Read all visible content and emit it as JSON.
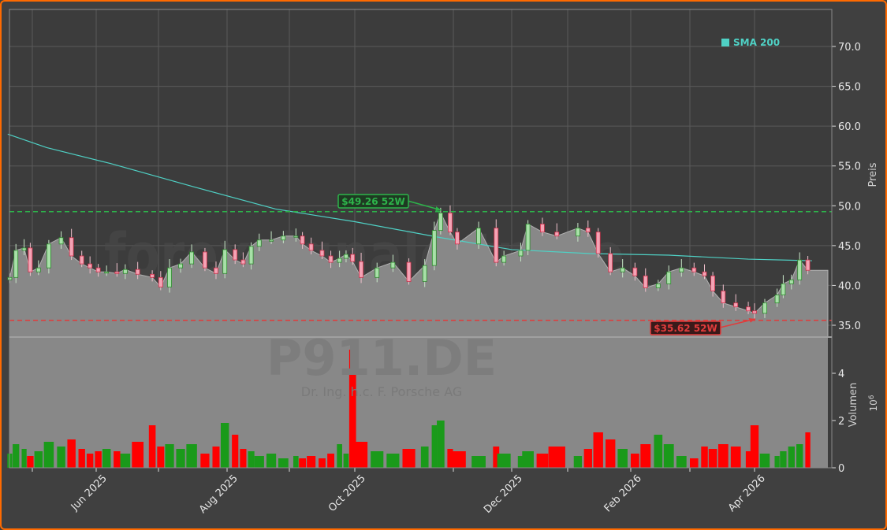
{
  "chart_data": [
    {
      "type": "candlestick",
      "ticker_watermark": "P911.DE",
      "company_watermark": "Dr. Ing. h.c. F. Porsche AG",
      "site_watermark": "forexsignale.trade",
      "ylabel": "Preis",
      "ylim": [
        34,
        74
      ],
      "yticks": [
        "35.0",
        "40.0",
        "45.0",
        "50.0",
        "55.0",
        "60.0",
        "65.0",
        "70.0"
      ],
      "xticks": [
        {
          "date": "2025-05-01",
          "label": ""
        },
        {
          "date": "2025-06-01",
          "label": "Jun 2025"
        },
        {
          "date": "2025-07-01",
          "label": ""
        },
        {
          "date": "2025-08-01",
          "label": "Aug 2025"
        },
        {
          "date": "2025-09-01",
          "label": ""
        },
        {
          "date": "2025-10-01",
          "label": "Oct 2025"
        },
        {
          "date": "2025-11-01",
          "label": ""
        },
        {
          "date": "2025-12-01",
          "label": "Dec 2025"
        },
        {
          "date": "2026-01-01",
          "label": ""
        },
        {
          "date": "2026-02-01",
          "label": "Feb 2026"
        },
        {
          "date": "2026-03-01",
          "label": ""
        },
        {
          "date": "2026-04-01",
          "label": "Apr 2026"
        }
      ],
      "grid": true,
      "legend": {
        "label": "SMA 200",
        "placement": "top-right",
        "color": "#4fd1c5"
      },
      "colors": {
        "up": "#1a9a1a",
        "down": "#ff0000",
        "up_body": "#a8e0a8",
        "down_body": "#f4a3b5",
        "area": "#888888",
        "sma": "#4fd1c5",
        "high_line": "#2db34a",
        "low_line": "#e03c3c"
      },
      "high_52w": {
        "value": 49.26,
        "label": "$49.26 52W",
        "date": "2025-10-28"
      },
      "low_52w": {
        "value": 35.62,
        "label": "$35.62 52W",
        "date": "2026-04-01"
      },
      "close": [
        [
          "2025-04-20",
          41.0
        ],
        [
          "2025-04-23",
          44.4
        ],
        [
          "2025-04-27",
          44.7
        ],
        [
          "2025-04-30",
          41.7
        ],
        [
          "2025-05-04",
          42.2
        ],
        [
          "2025-05-09",
          45.2
        ],
        [
          "2025-05-15",
          46.0
        ],
        [
          "2025-05-20",
          43.7
        ],
        [
          "2025-05-25",
          42.7
        ],
        [
          "2025-05-29",
          42.2
        ],
        [
          "2025-06-02",
          41.7
        ],
        [
          "2025-06-06",
          41.7
        ],
        [
          "2025-06-11",
          41.5
        ],
        [
          "2025-06-15",
          42.0
        ],
        [
          "2025-06-21",
          41.4
        ],
        [
          "2025-06-28",
          41.0
        ],
        [
          "2025-07-02",
          39.8
        ],
        [
          "2025-07-06",
          42.2
        ],
        [
          "2025-07-11",
          42.7
        ],
        [
          "2025-07-16",
          44.2
        ],
        [
          "2025-07-22",
          42.2
        ],
        [
          "2025-07-27",
          41.5
        ],
        [
          "2025-07-31",
          44.5
        ],
        [
          "2025-08-05",
          43.2
        ],
        [
          "2025-08-09",
          42.7
        ],
        [
          "2025-08-13",
          44.9
        ],
        [
          "2025-08-17",
          45.7
        ],
        [
          "2025-08-23",
          45.7
        ],
        [
          "2025-08-29",
          46.2
        ],
        [
          "2025-09-04",
          46.2
        ],
        [
          "2025-09-07",
          45.2
        ],
        [
          "2025-09-11",
          44.4
        ],
        [
          "2025-09-16",
          43.7
        ],
        [
          "2025-09-20",
          42.9
        ],
        [
          "2025-09-24",
          43.4
        ],
        [
          "2025-09-27",
          43.9
        ],
        [
          "2025-09-30",
          43.0
        ],
        [
          "2025-10-03",
          41.0
        ],
        [
          "2025-10-08",
          42.2
        ],
        [
          "2025-10-13",
          42.9
        ],
        [
          "2025-10-18",
          40.5
        ],
        [
          "2025-10-23",
          42.5
        ],
        [
          "2025-10-26",
          46.9
        ],
        [
          "2025-10-28",
          49.1
        ],
        [
          "2025-10-31",
          46.7
        ],
        [
          "2025-11-03",
          45.2
        ],
        [
          "2025-11-14",
          47.2
        ],
        [
          "2025-11-23",
          42.9
        ],
        [
          "2025-11-27",
          43.7
        ],
        [
          "2025-12-06",
          44.4
        ],
        [
          "2025-12-10",
          47.7
        ],
        [
          "2025-12-18",
          46.7
        ],
        [
          "2025-12-26",
          46.2
        ],
        [
          "2026-01-06",
          47.2
        ],
        [
          "2026-01-11",
          46.7
        ],
        [
          "2026-01-16",
          44.0
        ],
        [
          "2026-01-22",
          41.7
        ],
        [
          "2026-01-28",
          42.2
        ],
        [
          "2026-02-03",
          41.2
        ],
        [
          "2026-02-08",
          39.7
        ],
        [
          "2026-02-14",
          40.2
        ],
        [
          "2026-02-19",
          41.7
        ],
        [
          "2026-02-25",
          42.2
        ],
        [
          "2026-03-03",
          41.7
        ],
        [
          "2026-03-08",
          41.2
        ],
        [
          "2026-03-12",
          39.3
        ],
        [
          "2026-03-17",
          37.8
        ],
        [
          "2026-03-23",
          37.3
        ],
        [
          "2026-03-29",
          36.8
        ],
        [
          "2026-04-01",
          36.5
        ],
        [
          "2026-04-06",
          37.8
        ],
        [
          "2026-04-12",
          38.8
        ],
        [
          "2026-04-15",
          40.2
        ],
        [
          "2026-04-19",
          40.7
        ],
        [
          "2026-04-23",
          43.2
        ],
        [
          "2026-04-27",
          41.9
        ]
      ],
      "sma200": [
        [
          "2025-04-19",
          59.0
        ],
        [
          "2025-05-08",
          57.3
        ],
        [
          "2025-06-08",
          55.3
        ],
        [
          "2025-07-18",
          52.3
        ],
        [
          "2025-08-25",
          49.6
        ],
        [
          "2025-10-01",
          48.0
        ],
        [
          "2025-10-28",
          46.0
        ],
        [
          "2025-12-01",
          44.5
        ],
        [
          "2026-01-12",
          44.0
        ],
        [
          "2026-02-19",
          43.8
        ],
        [
          "2026-03-29",
          43.3
        ],
        [
          "2026-04-29",
          43.1
        ]
      ],
      "volume": {
        "ylabel": "Volumen",
        "scale_label": "10",
        "scale_exp": "6",
        "yticks": [
          "0",
          "2",
          "4"
        ],
        "ylim": [
          0,
          5.5
        ],
        "values": [
          0.6,
          1.0,
          0.8,
          0.5,
          0.7,
          1.1,
          0.9,
          1.2,
          0.8,
          0.6,
          0.7,
          0.8,
          0.7,
          0.6,
          1.1,
          1.8,
          0.9,
          1.0,
          0.8,
          1.0,
          0.6,
          0.9,
          1.9,
          1.4,
          0.8,
          0.7,
          0.5,
          0.6,
          0.4,
          0.5,
          0.4,
          0.5,
          0.4,
          0.6,
          1.0,
          0.6,
          5.0,
          1.1,
          0.7,
          0.6,
          0.8,
          0.9,
          1.8,
          2.0,
          0.8,
          0.7,
          0.5,
          0.9,
          0.6,
          0.5,
          0.7,
          0.6,
          0.9,
          0.5,
          0.8,
          1.5,
          1.2,
          0.8,
          0.6,
          1.0,
          1.4,
          1.0,
          0.5,
          0.4,
          0.9,
          0.8,
          1.0,
          0.9,
          0.7,
          1.8,
          0.6,
          0.5,
          0.7,
          0.9,
          1.0,
          1.5
        ]
      }
    }
  ]
}
